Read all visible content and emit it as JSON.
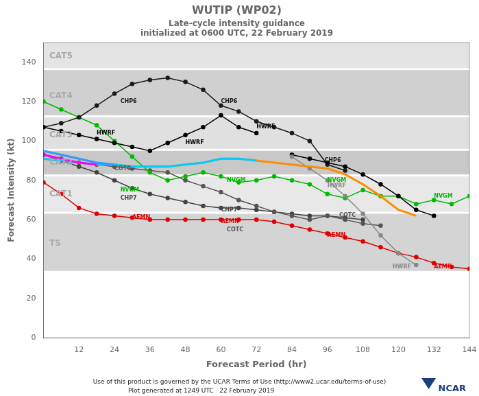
{
  "chart_data": {
    "type": "line",
    "title": "WUTIP (WP02)",
    "subtitle": [
      "Late-cycle intensity guidance",
      "initialized at 0600 UTC, 22 February 2019"
    ],
    "xlabel": "Forecast Period (hr)",
    "ylabel": "Forecast Intensity (kt)",
    "xlim": [
      0,
      144
    ],
    "ylim": [
      0,
      150
    ],
    "xticks": [
      12,
      24,
      36,
      48,
      60,
      72,
      84,
      96,
      108,
      120,
      132,
      144
    ],
    "yticks": [
      0,
      20,
      40,
      60,
      80,
      100,
      120,
      140
    ],
    "grid": false,
    "bands": [
      {
        "ymin": 34,
        "ymax": 63,
        "color": "#d4d4d4"
      },
      {
        "ymin": 64,
        "ymax": 82,
        "color": "#e8e8e8"
      },
      {
        "ymin": 83,
        "ymax": 95,
        "color": "#c8c8c8"
      },
      {
        "ymin": 96,
        "ymax": 112,
        "color": "#e0e0e0"
      },
      {
        "ymin": 113,
        "ymax": 136,
        "color": "#d0d0d0"
      },
      {
        "ymin": 137,
        "ymax": 150,
        "color": "#e4e4e4"
      }
    ],
    "band_labels": [
      {
        "text": "CAT5",
        "x": 2,
        "y": 143
      },
      {
        "text": "CAT4",
        "x": 2,
        "y": 123
      },
      {
        "text": "CAT3",
        "x": 2,
        "y": 103
      },
      {
        "text": "CAT2",
        "x": 2,
        "y": 89
      },
      {
        "text": "CAT1",
        "x": 2,
        "y": 73
      },
      {
        "text": "TS",
        "x": 2,
        "y": 48
      }
    ],
    "series": [
      {
        "color": "#dd0000",
        "marker": "o",
        "x": [
          0,
          6,
          12,
          18,
          24,
          30,
          36,
          42,
          48,
          54,
          60,
          66,
          72,
          78,
          84,
          90,
          96,
          102,
          108,
          114,
          120,
          126,
          132,
          138,
          144
        ],
        "values": [
          79,
          73,
          66,
          63,
          62,
          61,
          60,
          60,
          60,
          60,
          60,
          60,
          60,
          59,
          57,
          55,
          53,
          51,
          49,
          46,
          43,
          41,
          38,
          36,
          35
        ]
      },
      {
        "color": "#444444",
        "marker": "o",
        "x": [
          0,
          6,
          12,
          18,
          24,
          30,
          36,
          42,
          48,
          54,
          60,
          66,
          72,
          78,
          84,
          90,
          96,
          102,
          108
        ],
        "values": [
          93,
          90,
          87,
          84,
          80,
          76,
          73,
          71,
          69,
          67,
          66,
          66,
          65,
          64,
          63,
          62,
          62,
          61,
          60
        ]
      },
      {
        "color": "#555555",
        "marker": "o",
        "x": [
          0,
          6,
          12,
          18,
          24,
          30,
          36,
          42,
          48,
          54,
          60,
          66,
          72,
          78,
          84,
          90,
          96,
          102,
          108,
          114
        ],
        "values": [
          93,
          91,
          89,
          88,
          87,
          86,
          85,
          84,
          80,
          77,
          74,
          70,
          67,
          64,
          62,
          60,
          62,
          60,
          58,
          57
        ]
      },
      {
        "color": "#00bb00",
        "marker": "o",
        "x": [
          0,
          6,
          12,
          18,
          24,
          30,
          36,
          42,
          48,
          54,
          60,
          66,
          72,
          78,
          84,
          90,
          96,
          102,
          108,
          114,
          120,
          126,
          132,
          138,
          144
        ],
        "values": [
          120,
          116,
          112,
          108,
          100,
          92,
          84,
          80,
          82,
          84,
          82,
          79,
          80,
          82,
          80,
          78,
          73,
          71,
          75,
          72,
          72,
          68,
          70,
          68,
          72
        ]
      },
      {
        "color": "#1a1a1a",
        "marker": "o",
        "x": [
          0,
          6,
          12,
          18,
          24,
          30,
          36,
          42,
          48,
          54,
          60,
          66,
          72,
          78,
          84,
          90,
          96,
          102
        ],
        "values": [
          107,
          109,
          112,
          118,
          124,
          129,
          131,
          132,
          130,
          126,
          118,
          115,
          110,
          107,
          104,
          100,
          88,
          85
        ]
      },
      {
        "color": "#000000",
        "marker": "o",
        "x": [
          0,
          6,
          12,
          18,
          24,
          30,
          36,
          42,
          48,
          54,
          60,
          66,
          72
        ],
        "values": [
          107,
          105,
          103,
          101,
          99,
          97,
          95,
          99,
          103,
          107,
          113,
          107,
          104
        ]
      },
      {
        "color": "#000000",
        "marker": "o",
        "x": [
          84,
          90,
          96,
          102,
          108,
          114,
          120,
          126,
          132
        ],
        "values": [
          93,
          91,
          89,
          87,
          83,
          78,
          72,
          65,
          62
        ]
      },
      {
        "color": "#888888",
        "marker": "o",
        "x": [
          84,
          90,
          96,
          102,
          108,
          114,
          120,
          126
        ],
        "values": [
          92,
          86,
          80,
          72,
          63,
          52,
          43,
          37
        ]
      },
      {
        "color": "#ff8c00",
        "marker": "none",
        "x": [
          0,
          6,
          12,
          18,
          24,
          30,
          36,
          42,
          48,
          54,
          60,
          66,
          72,
          78,
          84,
          90,
          96,
          102,
          108,
          114,
          120,
          126
        ],
        "values": [
          91,
          90,
          89,
          88,
          88,
          87,
          87,
          87,
          88,
          89,
          91,
          91,
          90,
          89,
          88,
          87,
          86,
          83,
          78,
          72,
          65,
          62
        ]
      },
      {
        "color": "#00ccff",
        "marker": "none",
        "x": [
          0,
          6,
          12,
          18,
          24,
          30,
          36,
          42,
          48,
          54,
          60,
          66,
          72
        ],
        "values": [
          91,
          90,
          89,
          88,
          88,
          87,
          87,
          87,
          88,
          89,
          91,
          91,
          90
        ]
      },
      {
        "color": "#3399ff",
        "marker": "none",
        "x": [
          0,
          6,
          12,
          18,
          24
        ],
        "values": [
          95,
          93,
          91,
          89,
          88
        ]
      },
      {
        "color": "#ff00ff",
        "marker": "none",
        "x": [
          0,
          6,
          12,
          18
        ],
        "values": [
          93,
          91,
          89,
          88
        ]
      }
    ],
    "annotations": [
      {
        "text": "CHP6",
        "x": 26,
        "y": 120,
        "color": "#1a1a1a"
      },
      {
        "text": "HWRF",
        "x": 18,
        "y": 104,
        "color": "#000000"
      },
      {
        "text": "COTC",
        "x": 24,
        "y": 86,
        "color": "#555555"
      },
      {
        "text": "NVGM",
        "x": 26,
        "y": 75,
        "color": "#00bb00"
      },
      {
        "text": "CHP7",
        "x": 26,
        "y": 71,
        "color": "#444444"
      },
      {
        "text": "AEMN",
        "x": 30,
        "y": 61,
        "color": "#dd0000"
      },
      {
        "text": "HWRF",
        "x": 48,
        "y": 99,
        "color": "#000000"
      },
      {
        "text": "CHP6",
        "x": 60,
        "y": 120,
        "color": "#1a1a1a"
      },
      {
        "text": "NVGM",
        "x": 62,
        "y": 80,
        "color": "#00bb00"
      },
      {
        "text": "CHP7",
        "x": 60,
        "y": 65,
        "color": "#444444"
      },
      {
        "text": "AEMN",
        "x": 60,
        "y": 59,
        "color": "#dd0000"
      },
      {
        "text": "COTC",
        "x": 62,
        "y": 55,
        "color": "#555555"
      },
      {
        "text": "HWRF",
        "x": 72,
        "y": 107,
        "color": "#000000"
      },
      {
        "text": "CHP6",
        "x": 95,
        "y": 90,
        "color": "#1a1a1a"
      },
      {
        "text": "HWRF",
        "x": 96,
        "y": 77,
        "color": "#888888"
      },
      {
        "text": "NVGM",
        "x": 96,
        "y": 80,
        "color": "#00bb00"
      },
      {
        "text": "COTC",
        "x": 100,
        "y": 62,
        "color": "#555555"
      },
      {
        "text": "AEMN",
        "x": 96,
        "y": 52,
        "color": "#dd0000"
      },
      {
        "text": "NVGM",
        "x": 132,
        "y": 72,
        "color": "#00bb00"
      },
      {
        "text": "AEMN",
        "x": 132,
        "y": 36,
        "color": "#dd0000"
      },
      {
        "text": "HWRF",
        "x": 118,
        "y": 36,
        "color": "#888888"
      }
    ],
    "footer": [
      "Use of this product is governed by the UCAR Terms of Use (http://www2.ucar.edu/terms-of-use)",
      "Plot generated at 1249 UTC   22 February 2019"
    ],
    "logo": "NCAR"
  }
}
